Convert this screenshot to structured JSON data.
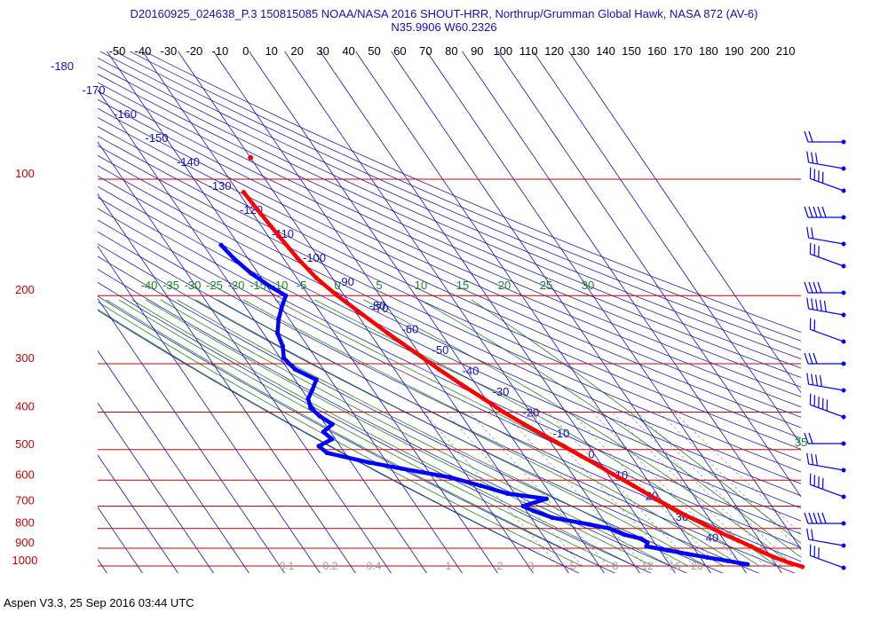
{
  "header": {
    "title": "D20160925_024638_P.3 150815085 NOAA/NASA 2016 SHOUT-HRR, Northrup/Grumman Global Hawk, NASA 872 (AV-6)",
    "location": "N35.9906 W60.2326"
  },
  "footer": {
    "text": "Aspen V3.3, 25 Sep 2016  03:44 UTC"
  },
  "colors": {
    "isobar": "#cc0000",
    "isotherm": "#1010c0",
    "dry_adiabat": "#2020c0",
    "moist_adiabat": "#1a8a1a",
    "mixing_ratio": "#9a9a9a",
    "temperature": "#ff0000",
    "dewpoint": "#0000ff"
  },
  "chart_data": {
    "type": "skew-t",
    "x_axis": {
      "label": "",
      "ticks": [
        "-50",
        "-40",
        "-30",
        "-20",
        "-10",
        "0",
        "10",
        "20",
        "30",
        "40",
        "50",
        "60",
        "70",
        "80",
        "90",
        "100",
        "110",
        "120",
        "130",
        "140",
        "150",
        "160",
        "170",
        "180",
        "190",
        "200",
        "210"
      ]
    },
    "y_axis": {
      "label": "",
      "ticks": [
        "100",
        "200",
        "300",
        "400",
        "500",
        "600",
        "700",
        "800",
        "900",
        "1000"
      ],
      "log_scale": true
    },
    "isotherm_labels": [
      "-180",
      "-170",
      "-160",
      "-150",
      "-140",
      "-130",
      "-120",
      "-110",
      "-100",
      "-90",
      "-80",
      "-70",
      "-60",
      "-50",
      "-40",
      "-30",
      "-20",
      "-10",
      "0",
      "10",
      "20",
      "30",
      "40"
    ],
    "moist_adiabat_labels": [
      "-40",
      "-35",
      "-30",
      "-25",
      "-20",
      "-15",
      "-10",
      "-5",
      "0",
      "5",
      "10",
      "15",
      "20",
      "25",
      "30",
      "35"
    ],
    "mixing_ratio_labels": [
      "0.1",
      "0.2",
      "0.4",
      "1",
      "2",
      "3",
      "5",
      "8",
      "12",
      "16",
      "20"
    ],
    "series": [
      {
        "name": "",
        "variable": "temperature",
        "points": [
          [
            108,
            -58.5
          ],
          [
            120,
            -58
          ],
          [
            140,
            -57
          ],
          [
            160,
            -56
          ],
          [
            180,
            -54.5
          ],
          [
            200,
            -52
          ],
          [
            220,
            -49
          ],
          [
            250,
            -45
          ],
          [
            280,
            -41
          ],
          [
            310,
            -37.5
          ],
          [
            340,
            -34
          ],
          [
            370,
            -30.5
          ],
          [
            400,
            -27.5
          ],
          [
            430,
            -24
          ],
          [
            460,
            -20.5
          ],
          [
            490,
            -17
          ],
          [
            520,
            -14
          ],
          [
            550,
            -11
          ],
          [
            580,
            -8.5
          ],
          [
            620,
            -5
          ],
          [
            660,
            -2
          ],
          [
            700,
            1
          ],
          [
            740,
            4
          ],
          [
            780,
            7.5
          ],
          [
            820,
            10.5
          ],
          [
            860,
            14
          ],
          [
            890,
            16.5
          ],
          [
            920,
            18.5
          ],
          [
            950,
            21
          ],
          [
            980,
            24
          ],
          [
            1005,
            27
          ]
        ],
        "detached_point": [
          88,
          -50
        ]
      },
      {
        "name": "",
        "variable": "dewpoint",
        "points": [
          [
            148,
            -75
          ],
          [
            160,
            -74
          ],
          [
            175,
            -72
          ],
          [
            190,
            -69
          ],
          [
            200,
            -66.5
          ],
          [
            215,
            -70
          ],
          [
            230,
            -73
          ],
          [
            250,
            -76
          ],
          [
            270,
            -77
          ],
          [
            290,
            -79
          ],
          [
            310,
            -78
          ],
          [
            330,
            -74
          ],
          [
            350,
            -77
          ],
          [
            370,
            -80
          ],
          [
            390,
            -81
          ],
          [
            410,
            -80
          ],
          [
            430,
            -78
          ],
          [
            450,
            -82
          ],
          [
            470,
            -81
          ],
          [
            490,
            -86
          ],
          [
            510,
            -85
          ],
          [
            540,
            -75
          ],
          [
            560,
            -67
          ],
          [
            590,
            -55
          ],
          [
            620,
            -48
          ],
          [
            650,
            -42
          ],
          [
            670,
            -32
          ],
          [
            700,
            -40
          ],
          [
            720,
            -38
          ],
          [
            750,
            -34
          ],
          [
            780,
            -25
          ],
          [
            800,
            -20
          ],
          [
            830,
            -17
          ],
          [
            850,
            -13
          ],
          [
            870,
            -12
          ],
          [
            890,
            -13
          ],
          [
            910,
            -8
          ],
          [
            930,
            -3
          ],
          [
            950,
            2
          ],
          [
            970,
            7
          ],
          [
            990,
            12
          ]
        ]
      }
    ]
  }
}
